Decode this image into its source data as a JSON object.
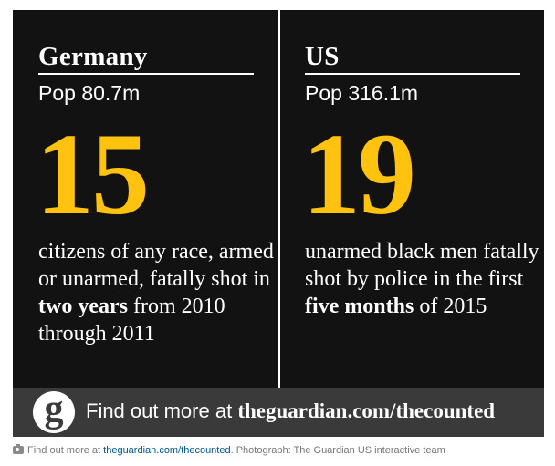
{
  "left_panel": {
    "country": "Germany",
    "population": "Pop 80.7m",
    "number": "15",
    "description": {
      "part1": "citizens of any race, armed or unarmed, fatally shot in ",
      "bold1": "two years",
      "part2": " from 2010 through 2011"
    }
  },
  "right_panel": {
    "country": "US",
    "population": "Pop 316.1m",
    "number": "19",
    "description": {
      "part1": "unarmed black men fatally shot by police in the first ",
      "bold1": "five months",
      "part2": " of 2015"
    }
  },
  "footer": {
    "logo_letter": "g",
    "prefix": "Find out more at ",
    "url": "theguardian.com/thecounted"
  },
  "caption": {
    "icon": "camera-icon",
    "prefix": "Find out more at ",
    "link": "theguardian.com/thecounted",
    "suffix": ". Photograph: The Guardian US interactive team"
  },
  "colors": {
    "background": "#121212",
    "accent": "#ffc20e",
    "footer_bar": "#3a3a3a",
    "link": "#005689"
  }
}
